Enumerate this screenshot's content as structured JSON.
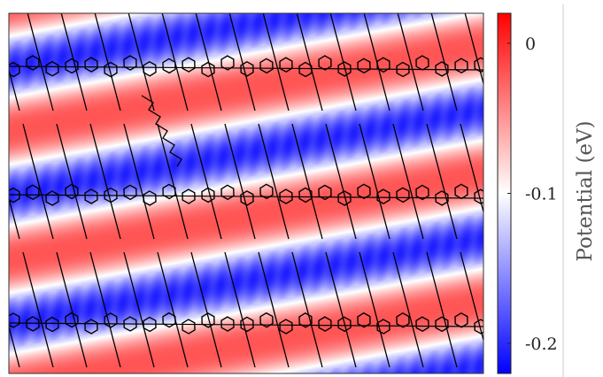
{
  "chart_data": {
    "type": "heatmap",
    "title": "",
    "xlabel": "",
    "ylabel": "",
    "description_colors": {
      "low": "#0000ff",
      "mid": "#ffffff",
      "high": "#ff0000"
    },
    "colorbar": {
      "label": "Potential (eV)",
      "range": [
        -0.22,
        0.02
      ],
      "ticks": [
        {
          "value": 0,
          "label": "0"
        },
        {
          "value": -0.1,
          "label": "-0.1"
        },
        {
          "value": -0.2,
          "label": "-0.2"
        }
      ],
      "colormap": "bwr"
    },
    "field": {
      "band_period_fraction": 0.35,
      "stripe_direction": "diagonal",
      "low_value": -0.2,
      "high_value": -0.02
    },
    "grid": false
  }
}
